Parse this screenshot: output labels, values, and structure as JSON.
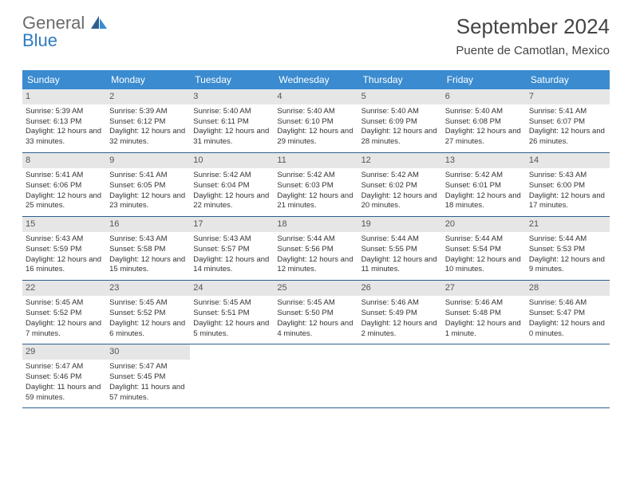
{
  "logo": {
    "general": "General",
    "blue": "Blue"
  },
  "title": "September 2024",
  "subtitle": "Puente de Camotlan, Mexico",
  "colors": {
    "header_bg": "#3a8bd0",
    "header_text": "#ffffff",
    "daynum_bg": "#e6e6e6",
    "row_border": "#2d5f8e",
    "text": "#333333",
    "logo_gray": "#6b6b6b",
    "logo_blue": "#2f7bbf"
  },
  "daynames": [
    "Sunday",
    "Monday",
    "Tuesday",
    "Wednesday",
    "Thursday",
    "Friday",
    "Saturday"
  ],
  "weeks": [
    [
      {
        "n": "1",
        "sr": "5:39 AM",
        "ss": "6:13 PM",
        "dl": "12 hours and 33 minutes."
      },
      {
        "n": "2",
        "sr": "5:39 AM",
        "ss": "6:12 PM",
        "dl": "12 hours and 32 minutes."
      },
      {
        "n": "3",
        "sr": "5:40 AM",
        "ss": "6:11 PM",
        "dl": "12 hours and 31 minutes."
      },
      {
        "n": "4",
        "sr": "5:40 AM",
        "ss": "6:10 PM",
        "dl": "12 hours and 29 minutes."
      },
      {
        "n": "5",
        "sr": "5:40 AM",
        "ss": "6:09 PM",
        "dl": "12 hours and 28 minutes."
      },
      {
        "n": "6",
        "sr": "5:40 AM",
        "ss": "6:08 PM",
        "dl": "12 hours and 27 minutes."
      },
      {
        "n": "7",
        "sr": "5:41 AM",
        "ss": "6:07 PM",
        "dl": "12 hours and 26 minutes."
      }
    ],
    [
      {
        "n": "8",
        "sr": "5:41 AM",
        "ss": "6:06 PM",
        "dl": "12 hours and 25 minutes."
      },
      {
        "n": "9",
        "sr": "5:41 AM",
        "ss": "6:05 PM",
        "dl": "12 hours and 23 minutes."
      },
      {
        "n": "10",
        "sr": "5:42 AM",
        "ss": "6:04 PM",
        "dl": "12 hours and 22 minutes."
      },
      {
        "n": "11",
        "sr": "5:42 AM",
        "ss": "6:03 PM",
        "dl": "12 hours and 21 minutes."
      },
      {
        "n": "12",
        "sr": "5:42 AM",
        "ss": "6:02 PM",
        "dl": "12 hours and 20 minutes."
      },
      {
        "n": "13",
        "sr": "5:42 AM",
        "ss": "6:01 PM",
        "dl": "12 hours and 18 minutes."
      },
      {
        "n": "14",
        "sr": "5:43 AM",
        "ss": "6:00 PM",
        "dl": "12 hours and 17 minutes."
      }
    ],
    [
      {
        "n": "15",
        "sr": "5:43 AM",
        "ss": "5:59 PM",
        "dl": "12 hours and 16 minutes."
      },
      {
        "n": "16",
        "sr": "5:43 AM",
        "ss": "5:58 PM",
        "dl": "12 hours and 15 minutes."
      },
      {
        "n": "17",
        "sr": "5:43 AM",
        "ss": "5:57 PM",
        "dl": "12 hours and 14 minutes."
      },
      {
        "n": "18",
        "sr": "5:44 AM",
        "ss": "5:56 PM",
        "dl": "12 hours and 12 minutes."
      },
      {
        "n": "19",
        "sr": "5:44 AM",
        "ss": "5:55 PM",
        "dl": "12 hours and 11 minutes."
      },
      {
        "n": "20",
        "sr": "5:44 AM",
        "ss": "5:54 PM",
        "dl": "12 hours and 10 minutes."
      },
      {
        "n": "21",
        "sr": "5:44 AM",
        "ss": "5:53 PM",
        "dl": "12 hours and 9 minutes."
      }
    ],
    [
      {
        "n": "22",
        "sr": "5:45 AM",
        "ss": "5:52 PM",
        "dl": "12 hours and 7 minutes."
      },
      {
        "n": "23",
        "sr": "5:45 AM",
        "ss": "5:52 PM",
        "dl": "12 hours and 6 minutes."
      },
      {
        "n": "24",
        "sr": "5:45 AM",
        "ss": "5:51 PM",
        "dl": "12 hours and 5 minutes."
      },
      {
        "n": "25",
        "sr": "5:45 AM",
        "ss": "5:50 PM",
        "dl": "12 hours and 4 minutes."
      },
      {
        "n": "26",
        "sr": "5:46 AM",
        "ss": "5:49 PM",
        "dl": "12 hours and 2 minutes."
      },
      {
        "n": "27",
        "sr": "5:46 AM",
        "ss": "5:48 PM",
        "dl": "12 hours and 1 minute."
      },
      {
        "n": "28",
        "sr": "5:46 AM",
        "ss": "5:47 PM",
        "dl": "12 hours and 0 minutes."
      }
    ],
    [
      {
        "n": "29",
        "sr": "5:47 AM",
        "ss": "5:46 PM",
        "dl": "11 hours and 59 minutes."
      },
      {
        "n": "30",
        "sr": "5:47 AM",
        "ss": "5:45 PM",
        "dl": "11 hours and 57 minutes."
      },
      null,
      null,
      null,
      null,
      null
    ]
  ],
  "labels": {
    "sunrise": "Sunrise:",
    "sunset": "Sunset:",
    "daylight": "Daylight:"
  }
}
